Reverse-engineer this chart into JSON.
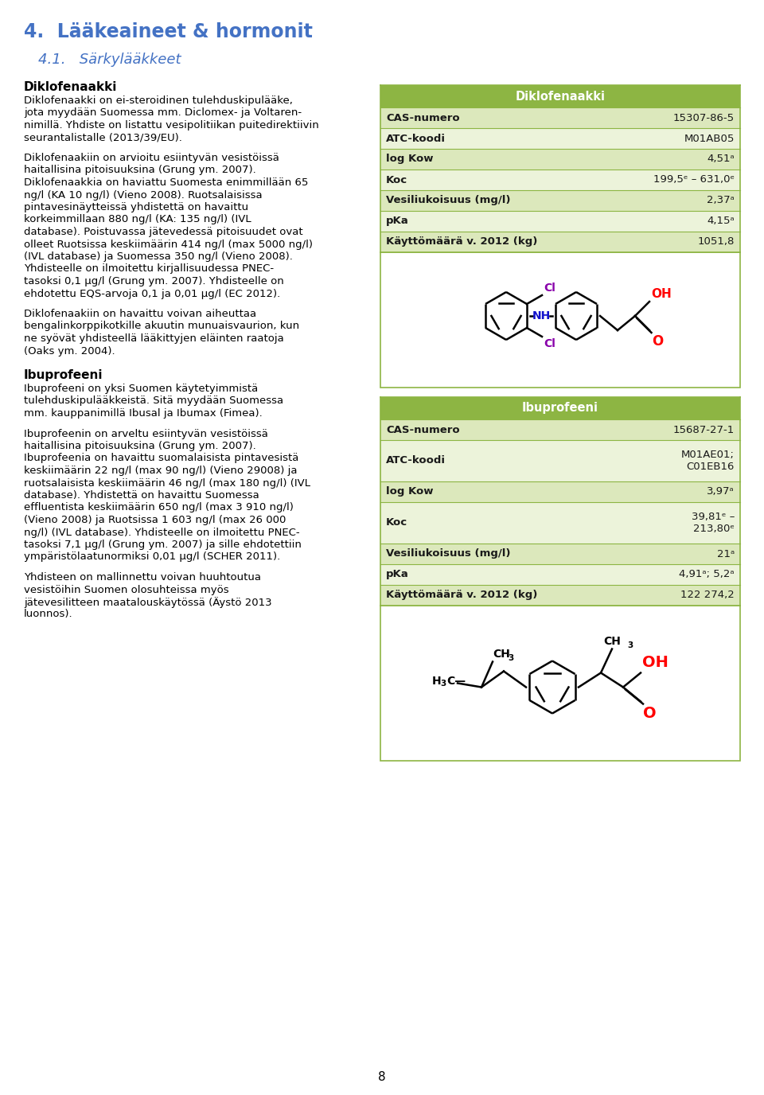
{
  "title1": "4.  Lääkeaineet & hormonit",
  "title2": "4.1.   Särkylääkkeet",
  "section1_head": "Diklofenaakki",
  "section1_para1": [
    "Diklofenaakki on ei-steroidinen tulehduskipulääke,",
    "jota myydään Suomessa mm. Diclomex- ja Voltaren-",
    "nimillä. Yhdiste on listattu vesipolitiikan puitedirektiivin",
    "seurantalistalle (2013/39/EU)."
  ],
  "section1_para2": [
    "Diklofenaakiin on arvioitu esiintyvän vesistöissä",
    "haitallisina pitoisuuksina (Grung ym. 2007).",
    "Diklofenaakkia on haviattu Suomesta enimmillään 65",
    "ng/l (KA 10 ng/l) (Vieno 2008). Ruotsalaisissa",
    "pintavesinäytteissä yhdistettä on havaittu",
    "korkeimmillaan 880 ng/l (KA: 135 ng/l) (IVL",
    "database). Poistuvassa jätevedessä pitoisuudet ovat",
    "olleet Ruotsissa keskiimäärin 414 ng/l (max 5000 ng/l)",
    "(IVL database) ja Suomessa 350 ng/l (Vieno 2008).",
    "Yhdisteelle on ilmoitettu kirjallisuudessa PNEC-",
    "tasoksi 0,1 µg/l (Grung ym. 2007). Yhdisteelle on",
    "ehdotettu EQS-arvoja 0,1 ja 0,01 µg/l (EC 2012)."
  ],
  "section1_para3": [
    "Diklofenaakiin on havaittu voivan aiheuttaa",
    "bengalinkorppikotkille akuutin munuaisvaurion, kun",
    "ne syövät yhdisteellä lääkittyjen eläinten raatoja",
    "(Oaks ym. 2004)."
  ],
  "section2_head": "Ibuprofeeni",
  "section2_para1": [
    "Ibuprofeeni on yksi Suomen käytetyimmistä",
    "tulehduskipulääkkeistä. Sitä myydään Suomessa",
    "mm. kauppanimillä Ibusal ja Ibumax (Fimea)."
  ],
  "section2_para2": [
    "Ibuprofeenin on arveltu esiintyvän vesistöissä",
    "haitallisina pitoisuuksina (Grung ym. 2007).",
    "Ibuprofeenia on havaittu suomalaisista pintavesistä",
    "keskiimäärin 22 ng/l (max 90 ng/l) (Vieno 29008) ja",
    "ruotsalaisista keskiimäärin 46 ng/l (max 180 ng/l) (IVL",
    "database). Yhdistettä on havaittu Suomessa",
    "effluentista keskiimäärin 650 ng/l (max 3 910 ng/l)",
    "(Vieno 2008) ja Ruotsissa 1 603 ng/l (max 26 000",
    "ng/l) (IVL database). Yhdisteelle on ilmoitettu PNEC-",
    "tasoksi 7,1 µg/l (Grung ym. 2007) ja sille ehdotettiin",
    "ympäristölaatunormiksi 0,01 µg/l (SCHER 2011)."
  ],
  "section2_para3": [
    "Yhdisteen on mallinnettu voivan huuhtoutua",
    "vesistöihin Suomen olosuhteissa myös",
    "jätevesilitteen maatalouskäytössä (Äystö 2013",
    "luonnos)."
  ],
  "page_number": "8",
  "table1_title": "Diklofenaakki",
  "table1_rows": [
    [
      "CAS-numero",
      "15307-86-5"
    ],
    [
      "ATC-koodi",
      "M01AB05"
    ],
    [
      "log Kow",
      "4,51ᵃ"
    ],
    [
      "Koc",
      "199,5ᵉ – 631,0ᵉ"
    ],
    [
      "Vesiliukoisuus (mg/l)",
      "2,37ᵃ"
    ],
    [
      "pKa",
      "4,15ᵃ"
    ],
    [
      "Käyttömäärä v. 2012 (kg)",
      "1051,8"
    ]
  ],
  "table2_title": "Ibuprofeeni",
  "table2_rows": [
    [
      "CAS-numero",
      "15687-27-1"
    ],
    [
      "ATC-koodi",
      "M01AE01;\nC01EB16"
    ],
    [
      "log Kow",
      "3,97ᵃ"
    ],
    [
      "Koc",
      "39,81ᵉ –\n213,80ᵉ"
    ],
    [
      "Vesiliukoisuus (mg/l)",
      "21ᵃ"
    ],
    [
      "pKa",
      "4,91ᵃ; 5,2ᵃ"
    ],
    [
      "Käyttömäärä v. 2012 (kg)",
      "122 274,2"
    ]
  ],
  "header_bg": "#8db543",
  "header_text": "#ffffff",
  "table_bg_odd": "#dce8bc",
  "table_bg_even": "#ecf3da",
  "table_border": "#8db543",
  "title1_color": "#4472c4",
  "title2_color": "#4472c4",
  "body_text_color": "#000000",
  "section_head_color": "#000000",
  "bg_color": "#ffffff"
}
